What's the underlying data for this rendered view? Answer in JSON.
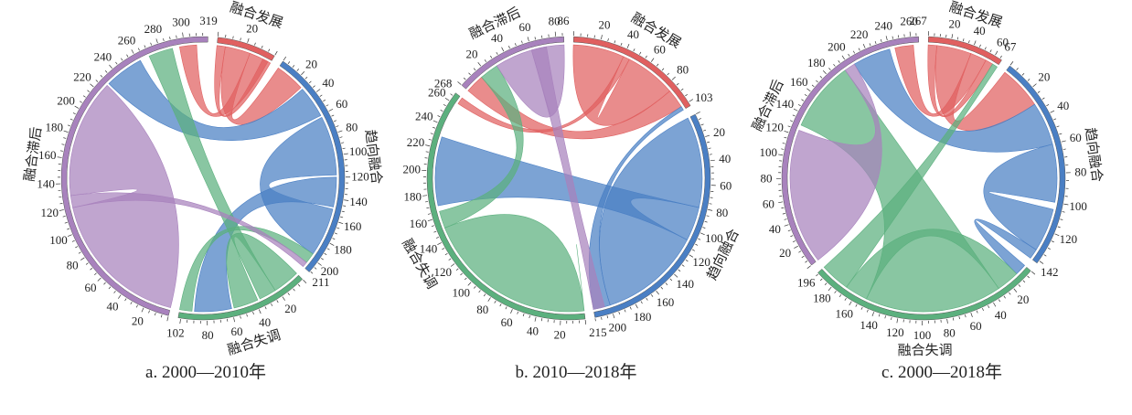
{
  "colors": {
    "融合发展": "#e06060",
    "趋向融合": "#4a7fc4",
    "融合失调": "#5cb07e",
    "融合滞后": "#a882bd"
  },
  "panels": [
    {
      "caption": "a. 2000—2010年",
      "groups": [
        {
          "name": "融合发展",
          "total": 40,
          "tick_step": 20,
          "end_label": "",
          "label_side": "out"
        },
        {
          "name": "趋向融合",
          "total": 211,
          "tick_step": 20,
          "end_label": "211",
          "label_side": "out"
        },
        {
          "name": "融合失调",
          "total": 102,
          "tick_step": 20,
          "end_label": "102",
          "label_side": "out"
        },
        {
          "name": "融合滞后",
          "total": 319,
          "tick_step": 20,
          "end_label": "319",
          "label_side": "out"
        }
      ],
      "flows": [
        {
          "from": "融合发展",
          "to": "融合发展",
          "a": [
            0,
            6
          ],
          "b": [
            34,
            40
          ]
        },
        {
          "from": "融合发展",
          "to": "趋向融合",
          "a": [
            6,
            24
          ],
          "b": [
            0,
            28
          ]
        },
        {
          "from": "融合发展",
          "to": "融合滞后",
          "a": [
            24,
            38
          ],
          "b": [
            296,
            310
          ]
        },
        {
          "from": "趋向融合",
          "to": "融合滞后",
          "a": [
            30,
            60
          ],
          "b": [
            230,
            262
          ]
        },
        {
          "from": "趋向融合",
          "to": "趋向融合",
          "a": [
            62,
            118
          ],
          "b": [
            150,
            196
          ]
        },
        {
          "from": "趋向融合",
          "to": "融合失调",
          "a": [
            120,
            148
          ],
          "b": [
            60,
            90
          ]
        },
        {
          "from": "融合失调",
          "to": "融合失调",
          "a": [
            0,
            22
          ],
          "b": [
            38,
            58
          ]
        },
        {
          "from": "融合失调",
          "to": "趋向融合",
          "a": [
            92,
            102
          ],
          "b": [
            196,
            206
          ]
        },
        {
          "from": "融合失调",
          "to": "融合滞后",
          "a": [
            22,
            36
          ],
          "b": [
            270,
            290
          ]
        },
        {
          "from": "融合滞后",
          "to": "融合滞后",
          "a": [
            0,
            120
          ],
          "b": [
            130,
            228
          ]
        },
        {
          "from": "融合滞后",
          "to": "趋向融合",
          "a": [
            120,
            130
          ],
          "b": [
            206,
            211
          ]
        }
      ]
    },
    {
      "caption": "b. 2010—2018年",
      "groups": [
        {
          "name": "融合发展",
          "total": 103,
          "tick_step": 20,
          "end_label": "103",
          "label_side": "out"
        },
        {
          "name": "趋向融合",
          "total": 215,
          "tick_step": 20,
          "end_label": "215",
          "label_side": "out"
        },
        {
          "name": "融合失调",
          "total": 268,
          "tick_step": 20,
          "end_label": "268",
          "label_side": "out"
        },
        {
          "name": "融合滞后",
          "total": 86,
          "tick_step": 20,
          "end_label": "86",
          "label_side": "out"
        }
      ],
      "flows": [
        {
          "from": "融合发展",
          "to": "融合发展",
          "a": [
            0,
            40
          ],
          "b": [
            45,
            85
          ]
        },
        {
          "from": "融合发展",
          "to": "融合滞后",
          "a": [
            85,
            100
          ],
          "b": [
            0,
            15
          ]
        },
        {
          "from": "融合发展",
          "to": "融合失调",
          "a": [
            40,
            45
          ],
          "b": [
            262,
            268
          ]
        },
        {
          "from": "趋向融合",
          "to": "趋向融合",
          "a": [
            0,
            80
          ],
          "b": [
            110,
            200
          ]
        },
        {
          "from": "趋向融合",
          "to": "融合失调",
          "a": [
            80,
            110
          ],
          "b": [
            170,
            230
          ]
        },
        {
          "from": "趋向融合",
          "to": "融合发展",
          "a": [
            200,
            215
          ],
          "b": [
            100,
            103
          ]
        },
        {
          "from": "融合失调",
          "to": "融合失调",
          "a": [
            0,
            150
          ],
          "b": [
            0,
            0
          ]
        },
        {
          "from": "融合失调",
          "to": "融合滞后",
          "a": [
            150,
            165
          ],
          "b": [
            15,
            30
          ]
        },
        {
          "from": "融合滞后",
          "to": "融合滞后",
          "a": [
            30,
            60
          ],
          "b": [
            60,
            86
          ]
        },
        {
          "from": "融合滞后",
          "to": "趋向融合",
          "a": [
            60,
            72
          ],
          "b": [
            205,
            215
          ]
        }
      ]
    },
    {
      "caption": "c. 2000—2018年",
      "groups": [
        {
          "name": "融合发展",
          "total": 67,
          "tick_step": 20,
          "end_label": "67",
          "label_side": "out"
        },
        {
          "name": "趋向融合",
          "total": 142,
          "tick_step": 20,
          "end_label": "142",
          "label_side": "out"
        },
        {
          "name": "融合失调",
          "total": 196,
          "tick_step": 20,
          "end_label": "196",
          "label_side": "out"
        },
        {
          "name": "融合滞后",
          "total": 267,
          "tick_step": 20,
          "end_label": "267",
          "label_side": "out"
        }
      ],
      "flows": [
        {
          "from": "融合发展",
          "to": "融合发展",
          "a": [
            0,
            8
          ],
          "b": [
            55,
            62
          ]
        },
        {
          "from": "融合发展",
          "to": "趋向融合",
          "a": [
            8,
            40
          ],
          "b": [
            0,
            30
          ]
        },
        {
          "from": "融合发展",
          "to": "融合滞后",
          "a": [
            40,
            55
          ],
          "b": [
            245,
            262
          ]
        },
        {
          "from": "趋向融合",
          "to": "融合滞后",
          "a": [
            30,
            60
          ],
          "b": [
            205,
            240
          ]
        },
        {
          "from": "趋向融合",
          "to": "趋向融合",
          "a": [
            60,
            100
          ],
          "b": [
            105,
            135
          ]
        },
        {
          "from": "趋向融合",
          "to": "融合失调",
          "a": [
            135,
            142
          ],
          "b": [
            0,
            10
          ]
        },
        {
          "from": "融合失调",
          "to": "融合失调",
          "a": [
            10,
            30
          ],
          "b": [
            150,
            170
          ]
        },
        {
          "from": "融合失调",
          "to": "融合滞后",
          "a": [
            30,
            150
          ],
          "b": [
            130,
            195
          ]
        },
        {
          "from": "融合失调",
          "to": "融合发展",
          "a": [
            170,
            196
          ],
          "b": [
            62,
            67
          ]
        },
        {
          "from": "融合滞后",
          "to": "融合滞后",
          "a": [
            0,
            125
          ],
          "b": [
            195,
            205
          ]
        }
      ]
    }
  ],
  "figure_caption": ""
}
